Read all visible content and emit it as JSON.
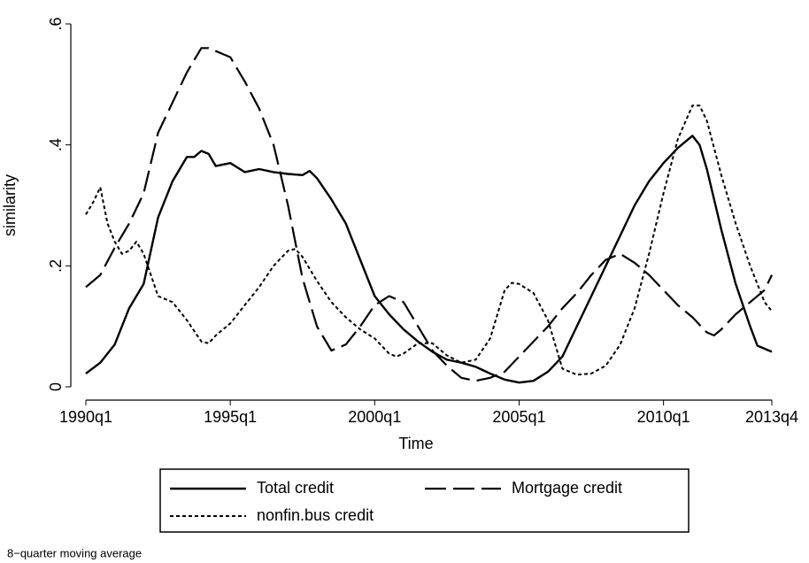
{
  "chart_data": {
    "type": "line",
    "x_label": "Time",
    "y_label": "similarity",
    "note": "8−quarter moving average",
    "xlim": [
      120,
      215
    ],
    "ylim": [
      0,
      0.6
    ],
    "xticks": [
      {
        "value": 120,
        "label": "1990q1"
      },
      {
        "value": 140,
        "label": "1995q1"
      },
      {
        "value": 160,
        "label": "2000q1"
      },
      {
        "value": 180,
        "label": "2005q1"
      },
      {
        "value": 200,
        "label": "2010q1"
      },
      {
        "value": 215,
        "label": "2013q4"
      }
    ],
    "yticks": [
      0,
      {
        "value": 0.2,
        "label": ".2"
      },
      {
        "value": 0.4,
        "label": ".4"
      },
      {
        "value": 0.6,
        "label": ".6"
      }
    ],
    "series": [
      {
        "name": "Total credit",
        "color": "#000000",
        "dash": "solid",
        "x": [
          120,
          122,
          124,
          126,
          128,
          130,
          132,
          134,
          135,
          136,
          137,
          138,
          140,
          142,
          144,
          146,
          148,
          150,
          151,
          152,
          154,
          156,
          158,
          160,
          162,
          164,
          166,
          168,
          170,
          172,
          174,
          176,
          178,
          180,
          182,
          184,
          186,
          188,
          190,
          192,
          194,
          196,
          198,
          200,
          202,
          204,
          205,
          206,
          208,
          210,
          212,
          213,
          215
        ],
        "values": [
          0.022,
          0.04,
          0.07,
          0.13,
          0.17,
          0.28,
          0.34,
          0.38,
          0.38,
          0.39,
          0.385,
          0.365,
          0.37,
          0.355,
          0.36,
          0.355,
          0.352,
          0.35,
          0.357,
          0.345,
          0.31,
          0.27,
          0.21,
          0.15,
          0.12,
          0.095,
          0.075,
          0.058,
          0.045,
          0.04,
          0.033,
          0.022,
          0.012,
          0.007,
          0.01,
          0.025,
          0.05,
          0.1,
          0.15,
          0.2,
          0.25,
          0.3,
          0.34,
          0.37,
          0.395,
          0.415,
          0.4,
          0.36,
          0.26,
          0.17,
          0.1,
          0.068,
          0.058
        ]
      },
      {
        "name": "Mortgage credit",
        "color": "#000000",
        "dash": "long",
        "x": [
          120,
          122,
          124,
          126,
          128,
          130,
          132,
          134,
          136,
          137,
          138,
          140,
          142,
          144,
          146,
          148,
          150,
          152,
          154,
          156,
          158,
          160,
          162,
          164,
          166,
          168,
          170,
          172,
          174,
          176,
          178,
          180,
          182,
          184,
          186,
          188,
          190,
          192,
          194,
          196,
          198,
          200,
          202,
          204,
          206,
          207,
          208,
          210,
          212,
          214,
          215
        ],
        "values": [
          0.165,
          0.185,
          0.23,
          0.27,
          0.32,
          0.42,
          0.47,
          0.52,
          0.56,
          0.56,
          0.555,
          0.545,
          0.505,
          0.46,
          0.4,
          0.3,
          0.18,
          0.1,
          0.06,
          0.07,
          0.1,
          0.135,
          0.15,
          0.14,
          0.1,
          0.06,
          0.035,
          0.015,
          0.01,
          0.015,
          0.025,
          0.05,
          0.075,
          0.1,
          0.13,
          0.155,
          0.185,
          0.21,
          0.22,
          0.205,
          0.185,
          0.16,
          0.135,
          0.115,
          0.09,
          0.085,
          0.095,
          0.12,
          0.14,
          0.16,
          0.185
        ]
      },
      {
        "name": "nonfin.bus credit",
        "color": "#000000",
        "dash": "short",
        "x": [
          120,
          121,
          122,
          123,
          124,
          125,
          126,
          127,
          128,
          130,
          132,
          134,
          136,
          137,
          138,
          140,
          142,
          144,
          146,
          148,
          149,
          150,
          152,
          154,
          156,
          158,
          160,
          162,
          163,
          164,
          166,
          168,
          170,
          172,
          174,
          176,
          178,
          179,
          180,
          182,
          184,
          186,
          188,
          190,
          192,
          194,
          196,
          198,
          200,
          202,
          204,
          205,
          206,
          208,
          210,
          212,
          214,
          215
        ],
        "values": [
          0.285,
          0.305,
          0.33,
          0.27,
          0.24,
          0.22,
          0.225,
          0.24,
          0.22,
          0.15,
          0.14,
          0.11,
          0.075,
          0.072,
          0.085,
          0.105,
          0.135,
          0.165,
          0.2,
          0.225,
          0.228,
          0.215,
          0.175,
          0.14,
          0.115,
          0.095,
          0.08,
          0.055,
          0.05,
          0.055,
          0.072,
          0.072,
          0.052,
          0.04,
          0.045,
          0.08,
          0.16,
          0.172,
          0.17,
          0.155,
          0.11,
          0.03,
          0.02,
          0.022,
          0.035,
          0.07,
          0.13,
          0.22,
          0.32,
          0.41,
          0.465,
          0.465,
          0.44,
          0.35,
          0.27,
          0.2,
          0.14,
          0.125
        ]
      }
    ]
  }
}
